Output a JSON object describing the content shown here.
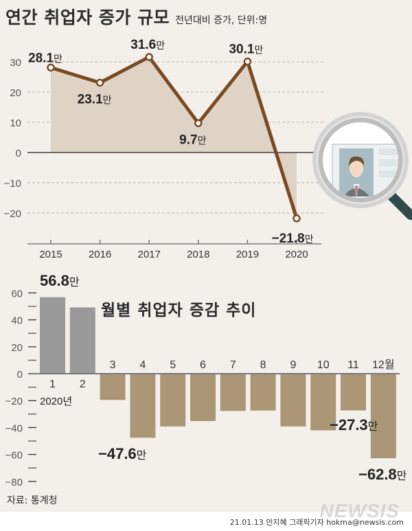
{
  "header": {
    "title": "연간 취업자 증가 규모",
    "subtitle": "전년대비 증가, 단위:명"
  },
  "colors": {
    "background": "#f3f0ec",
    "area_fill": "#dfd3c6",
    "line": "#7a4a22",
    "bar_positive": "#999999",
    "bar_negative": "#ab9675",
    "text": "#2b2b2b"
  },
  "monthly": {
    "title": "월별 취업자 증감 추이",
    "year_label": "2020년",
    "last_month_label": "12월"
  },
  "footer": {
    "source": "자료: 통계청",
    "credit": "21.01.13 안지혜 그래픽기자 hokma@newsis.com",
    "watermark": "NEWSIS"
  },
  "chart_data": [
    {
      "type": "line",
      "title": "연간 취업자 증가 규모",
      "subtitle": "전년대비 증가, 단위:명",
      "categories": [
        "2015",
        "2016",
        "2017",
        "2018",
        "2019",
        "2020"
      ],
      "values": [
        28.1,
        23.1,
        31.6,
        9.7,
        30.1,
        -21.8
      ],
      "data_labels": [
        "28.1만",
        "23.1만",
        "31.6만",
        "9.7만",
        "30.1만",
        "−21.8만"
      ],
      "unit": "만",
      "xlabel": "",
      "ylabel": "",
      "yticks": [
        30,
        20,
        10,
        0,
        -10,
        -20
      ],
      "ylim": [
        -30,
        35
      ],
      "grid": true,
      "area_fill": true
    },
    {
      "type": "bar",
      "title": "월별 취업자 증감 추이",
      "categories": [
        "1",
        "2",
        "3",
        "4",
        "5",
        "6",
        "7",
        "8",
        "9",
        "10",
        "11",
        "12월"
      ],
      "x_group_label": "2020년",
      "values": [
        56.8,
        49.2,
        -19.5,
        -47.6,
        -39.2,
        -35.2,
        -27.7,
        -27.4,
        -39.2,
        -42.1,
        -27.3,
        -62.8
      ],
      "data_labels": {
        "0": "56.8만",
        "3": "−47.6만",
        "10": "−27.3만",
        "11": "−62.8만"
      },
      "unit": "만",
      "yticks": [
        60,
        40,
        20,
        0,
        -20,
        -40,
        -60,
        -80
      ],
      "ylim": [
        -80,
        60
      ],
      "grid": false
    }
  ]
}
